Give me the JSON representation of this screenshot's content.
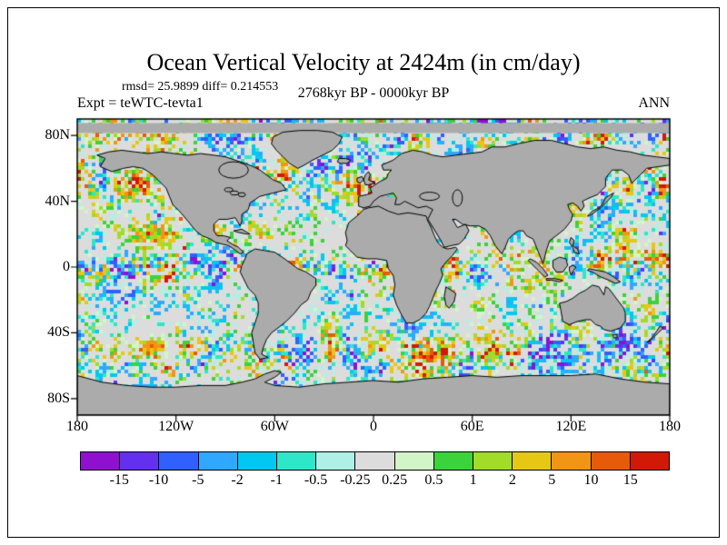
{
  "figure": {
    "title": "Ocean Vertical Velocity at 2424m (in cm/day)",
    "stats": "rmsd= 25.9899 diff= 0.214553",
    "period": "2768kyr BP - 0000kyr BP",
    "experiment": "Expt = teWTC-tevta1",
    "season": "ANN"
  },
  "map": {
    "lat_ticks": [
      {
        "label": "80N",
        "deg": 80
      },
      {
        "label": "40N",
        "deg": 40
      },
      {
        "label": "0",
        "deg": 0
      },
      {
        "label": "40S",
        "deg": -40
      },
      {
        "label": "80S",
        "deg": -80
      }
    ],
    "lon_ticks": [
      {
        "label": "180",
        "deg": -180
      },
      {
        "label": "120W",
        "deg": -120
      },
      {
        "label": "60W",
        "deg": -60
      },
      {
        "label": "0",
        "deg": 0
      },
      {
        "label": "60E",
        "deg": 60
      },
      {
        "label": "120E",
        "deg": 120
      },
      {
        "label": "180",
        "deg": 180
      }
    ],
    "land_color": "#ababab",
    "coastline_color": "#000000",
    "frame_color": "#000000"
  },
  "colorbar": {
    "tick_labels": [
      "-15",
      "-10",
      "-5",
      "-2",
      "-1",
      "-0.5",
      "-0.25",
      "0.25",
      "0.5",
      "1",
      "2",
      "5",
      "10",
      "15"
    ],
    "colors": [
      "#9010d0",
      "#6430f0",
      "#3060ff",
      "#30a8ff",
      "#00c8f0",
      "#2ee6c8",
      "#aef0e6",
      "#dcdcdc",
      "#d2f5c8",
      "#3cd23c",
      "#a0dc28",
      "#e6c814",
      "#f09614",
      "#e65a0a",
      "#d21905"
    ]
  },
  "chart_data": {
    "type": "heatmap",
    "title": "Ocean Vertical Velocity at 2424m (in cm/day)",
    "units": "cm/day",
    "depth_label": "2424m",
    "rmsd": 25.9899,
    "diff": 0.214553,
    "period": "2768kyr BP - 0000kyr BP",
    "experiment": "teWTC-tevta1",
    "season": "ANN",
    "x_axis": {
      "label": "longitude",
      "tick_labels": [
        "180",
        "120W",
        "60W",
        "0",
        "60E",
        "120E",
        "180"
      ],
      "tick_values_deg": [
        -180,
        -120,
        -60,
        0,
        60,
        120,
        180
      ],
      "range": [
        -180,
        180
      ]
    },
    "y_axis": {
      "label": "latitude",
      "tick_labels": [
        "80N",
        "40N",
        "0",
        "40S",
        "80S"
      ],
      "tick_values_deg": [
        80,
        40,
        0,
        -40,
        -80
      ],
      "range": [
        -90,
        90
      ]
    },
    "color_levels": [
      -15,
      -10,
      -5,
      -2,
      -1,
      -0.5,
      -0.25,
      0.25,
      0.5,
      1,
      2,
      5,
      10,
      15
    ],
    "palette": [
      "#9010d0",
      "#6430f0",
      "#3060ff",
      "#30a8ff",
      "#00c8f0",
      "#2ee6c8",
      "#aef0e6",
      "#dcdcdc",
      "#d2f5c8",
      "#3cd23c",
      "#a0dc28",
      "#e6c814",
      "#f09614",
      "#e65a0a",
      "#d21905"
    ],
    "land_mask_color": "#ababab",
    "legend_position": "bottom"
  }
}
